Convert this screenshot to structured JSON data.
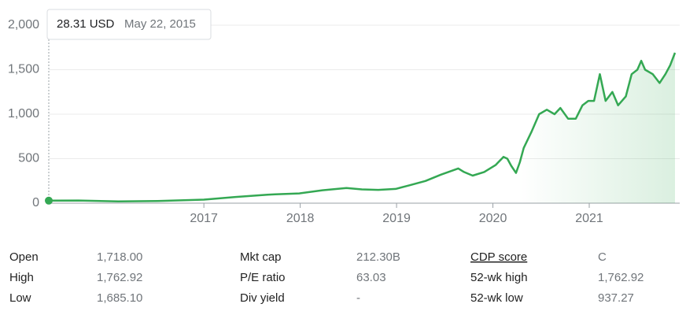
{
  "chart_data": {
    "type": "line",
    "x": [
      2015.39,
      2015.7,
      2016.11,
      2016.52,
      2017.0,
      2017.33,
      2017.66,
      2017.74,
      2017.99,
      2018.23,
      2018.48,
      2018.64,
      2018.81,
      2018.99,
      2019.13,
      2019.3,
      2019.46,
      2019.64,
      2019.7,
      2019.79,
      2019.91,
      2020.03,
      2020.11,
      2020.15,
      2020.19,
      2020.24,
      2020.28,
      2020.32,
      2020.4,
      2020.48,
      2020.56,
      2020.64,
      2020.7,
      2020.78,
      2020.86,
      2020.93,
      2020.99,
      2021.05,
      2021.11,
      2021.17,
      2021.24,
      2021.3,
      2021.38,
      2021.44,
      2021.5,
      2021.54,
      2021.58,
      2021.66,
      2021.73,
      2021.79,
      2021.84,
      2021.89
    ],
    "values": [
      28.31,
      30,
      20,
      25,
      40,
      70,
      95,
      100,
      110,
      145,
      170,
      155,
      150,
      160,
      200,
      250,
      320,
      390,
      350,
      310,
      350,
      430,
      520,
      500,
      420,
      340,
      460,
      620,
      800,
      1000,
      1050,
      1000,
      1070,
      950,
      950,
      1100,
      1150,
      1150,
      1450,
      1150,
      1250,
      1100,
      1200,
      1450,
      1500,
      1600,
      1500,
      1450,
      1350,
      1450,
      1550,
      1690
    ],
    "color": "#34a853",
    "xlim": [
      2015.39,
      2021.89
    ],
    "ylim": [
      0,
      2000
    ],
    "xticks": [
      2017,
      2018,
      2019,
      2020,
      2021
    ],
    "yticks": [
      0,
      500,
      {
        "value": 1000,
        "label": "1,000"
      },
      {
        "value": 1500,
        "label": "1,500"
      },
      {
        "value": 2000,
        "label": "2,000"
      }
    ],
    "grid": true
  },
  "tooltip": {
    "price": "28.31 USD",
    "date": "May 22, 2015"
  },
  "stats": [
    [
      {
        "label": "Open",
        "value": "1,718.00"
      },
      {
        "label": "High",
        "value": "1,762.92"
      },
      {
        "label": "Low",
        "value": "1,685.10"
      }
    ],
    [
      {
        "label": "Mkt cap",
        "value": "212.30B"
      },
      {
        "label": "P/E ratio",
        "value": "63.03"
      },
      {
        "label": "Div yield",
        "value": "-"
      }
    ],
    [
      {
        "label": "CDP score",
        "value": "C"
      },
      {
        "label": "52-wk high",
        "value": "1,762.92"
      },
      {
        "label": "52-wk low",
        "value": "937.27"
      }
    ]
  ]
}
